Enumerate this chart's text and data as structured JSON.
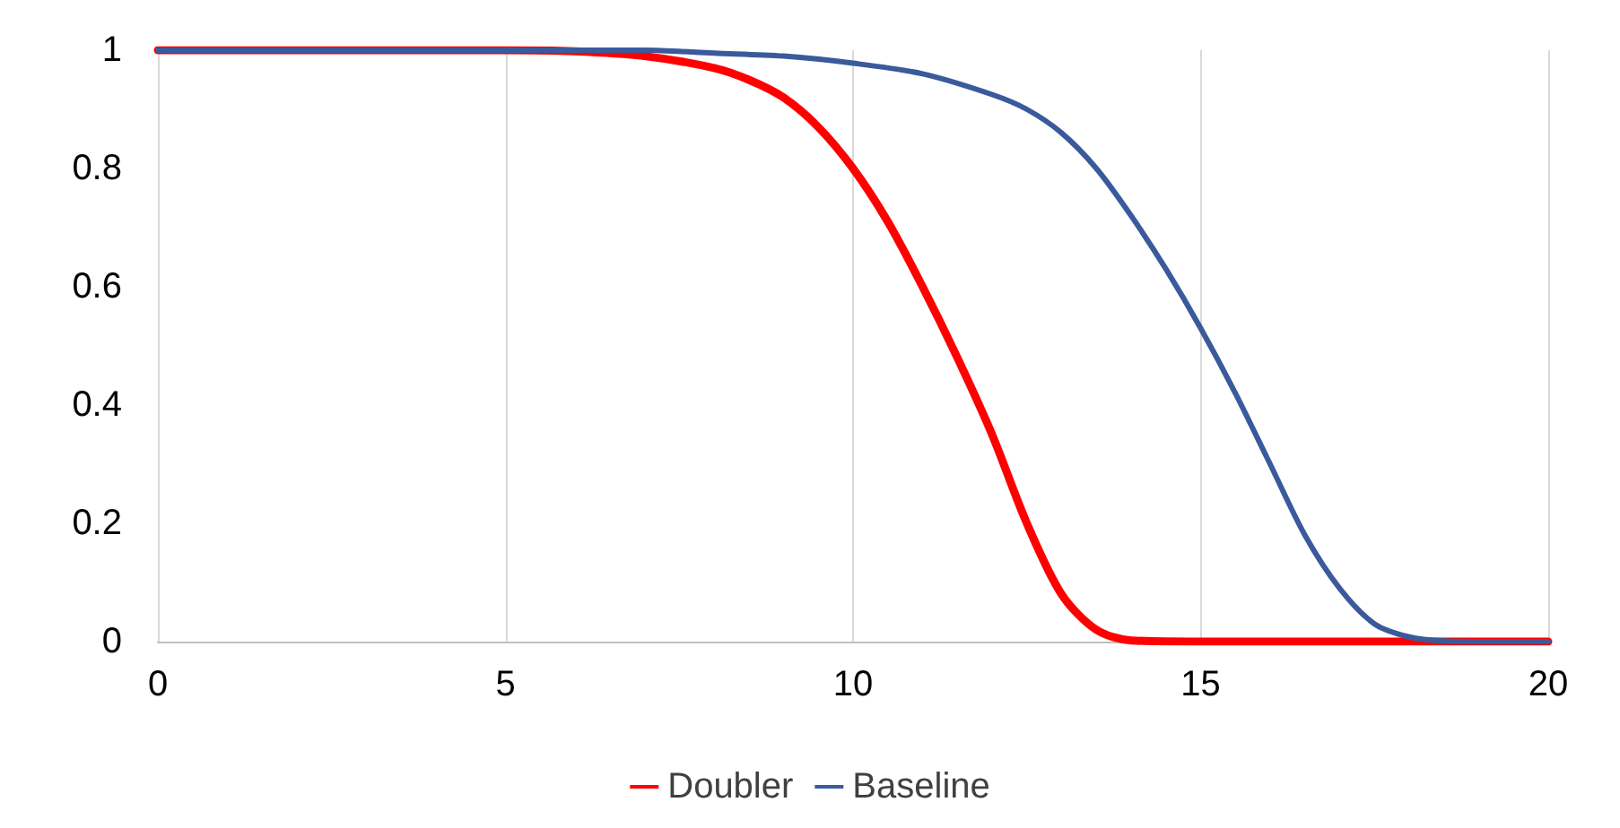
{
  "chart_data": {
    "type": "line",
    "xlim": [
      0,
      20
    ],
    "xticks": [
      0,
      5,
      10,
      15,
      20
    ],
    "ylim": [
      0,
      1
    ],
    "yticks": [
      0,
      0.2,
      0.4,
      0.6,
      0.8,
      1
    ],
    "grid": "x",
    "legend": "bottom",
    "marker": "none",
    "line_style": "solid",
    "series": [
      {
        "name": "Doubler",
        "color": "#ff0000",
        "x": [
          0,
          5,
          6,
          7,
          8,
          8.5,
          9,
          9.5,
          10,
          10.5,
          11,
          11.5,
          12,
          12.5,
          13,
          13.5,
          14,
          15,
          20
        ],
        "values": [
          1,
          1,
          0.998,
          0.99,
          0.97,
          0.95,
          0.92,
          0.87,
          0.8,
          0.71,
          0.6,
          0.48,
          0.35,
          0.2,
          0.08,
          0.02,
          0.002,
          0,
          0
        ]
      },
      {
        "name": "Baseline",
        "color": "#3a5a9c",
        "x": [
          0,
          7,
          8,
          9,
          10,
          11,
          12,
          12.5,
          13,
          13.5,
          14,
          14.5,
          15,
          15.5,
          16,
          16.5,
          17,
          17.5,
          18,
          18.5,
          19,
          20
        ],
        "values": [
          1,
          1,
          0.995,
          0.99,
          0.978,
          0.96,
          0.925,
          0.9,
          0.86,
          0.8,
          0.72,
          0.63,
          0.53,
          0.42,
          0.3,
          0.18,
          0.09,
          0.03,
          0.008,
          0.001,
          0,
          0
        ]
      }
    ]
  }
}
